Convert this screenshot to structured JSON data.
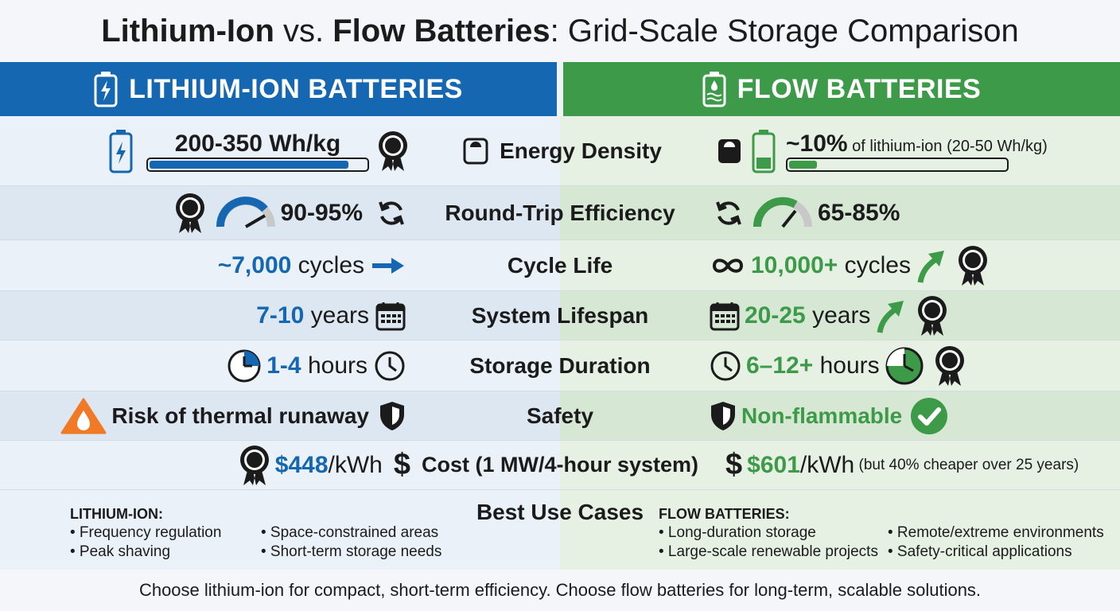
{
  "title": {
    "bold_a": "Lithium-Ion",
    "mid": " vs. ",
    "bold_b": "Flow Batteries",
    "rest": ": Grid-Scale Storage Comparison"
  },
  "headers": {
    "li": "LITHIUM-ION BATTERIES",
    "flow": "FLOW BATTERIES"
  },
  "colors": {
    "blue": "#1467b0",
    "green": "#3d9a48",
    "orange": "#f07a26"
  },
  "rows": {
    "energy": {
      "metric": "Energy Density",
      "li_value": "200-350 Wh/kg",
      "li_bar_fill": 0.92,
      "fl_value_main": "~10%",
      "fl_value_rest": " of lithium-ion (20-50 Wh/kg)",
      "fl_bar_fill": 0.13
    },
    "efficiency": {
      "metric": "Round-Trip Efficiency",
      "li_value": "90-95%",
      "fl_value": "65-85%"
    },
    "cycle": {
      "metric": "Cycle Life",
      "li_num": "~7,000",
      "li_unit": " cycles",
      "fl_num": "10,000+",
      "fl_unit": " cycles"
    },
    "lifespan": {
      "metric": "System Lifespan",
      "li_num": "7-10",
      "li_unit": " years",
      "fl_num": "20-25",
      "fl_unit": " years"
    },
    "duration": {
      "metric": "Storage Duration",
      "li_num": "1-4",
      "li_unit": " hours",
      "fl_num": "6–12+",
      "fl_unit": " hours"
    },
    "safety": {
      "metric": "Safety",
      "li_value": "Risk of thermal runaway",
      "fl_value": "Non-flammable"
    },
    "cost": {
      "metric": "Cost (1 MW/4-hour system)",
      "li_num": "$448",
      "li_unit": "/kWh",
      "fl_num": "$601",
      "fl_unit": "/kWh",
      "fl_note": " (but 40% cheaper over 25 years)"
    }
  },
  "use_cases": {
    "title": "Best Use Cases",
    "li_heading": "LITHIUM-ION:",
    "li_items": [
      "• Frequency regulation",
      "• Space-constrained areas",
      "• Peak shaving",
      "• Short-term storage needs"
    ],
    "fl_heading": "FLOW BATTERIES:",
    "fl_items": [
      "• Long-duration storage",
      "• Remote/extreme environments",
      "• Large-scale renewable projects",
      "• Safety-critical applications"
    ]
  },
  "icons": [
    "battery-icon",
    "award-ribbon-icon",
    "scale-icon",
    "gauge-icon",
    "refresh-icon",
    "arrow-right-icon",
    "infinity-icon",
    "arrow-up-icon",
    "calendar-icon",
    "clock-icon",
    "flame-warning-icon",
    "shield-icon",
    "check-circle-icon",
    "dollar-icon"
  ],
  "footer": "Choose lithium-ion for compact, short-term efficiency. Choose flow batteries for long-term, scalable solutions."
}
